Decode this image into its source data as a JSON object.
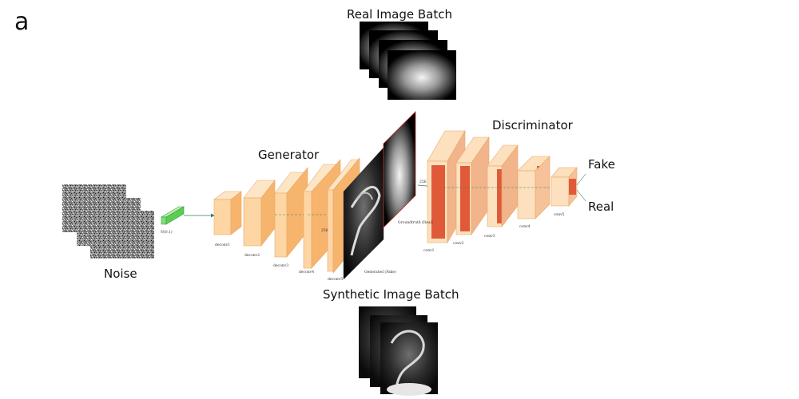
{
  "figure": {
    "panel_label": "a",
    "titles": {
      "noise": "Noise",
      "generator": "Generator",
      "discriminator": "Discriminator",
      "real_batch": "Real Image Batch",
      "synthetic_batch": "Synthetic Image Batch",
      "fake": "Fake",
      "real": "Real"
    },
    "small_labels": {
      "noise_vector": "N(0,1)",
      "deconv1": "deconv1",
      "deconv2": "deconv2",
      "deconv3": "deconv3",
      "deconv4": "deconv4",
      "deconv5": "deconv5",
      "generated": "Generated (Fake)",
      "ground_truth": "Groundtruth (Real)",
      "conv1": "conv1",
      "conv2": "conv2",
      "conv3": "conv3",
      "conv4": "conv4",
      "conv5": "conv5",
      "dim_256": "256"
    },
    "colors": {
      "generator_face": "#fdd6a4",
      "generator_side": "#f7b46c",
      "discriminator_face": "#fde0bd",
      "discriminator_core": "#e05a3a",
      "noise_vector": "#7fe07a",
      "arrow": "#2f7d6a"
    }
  }
}
